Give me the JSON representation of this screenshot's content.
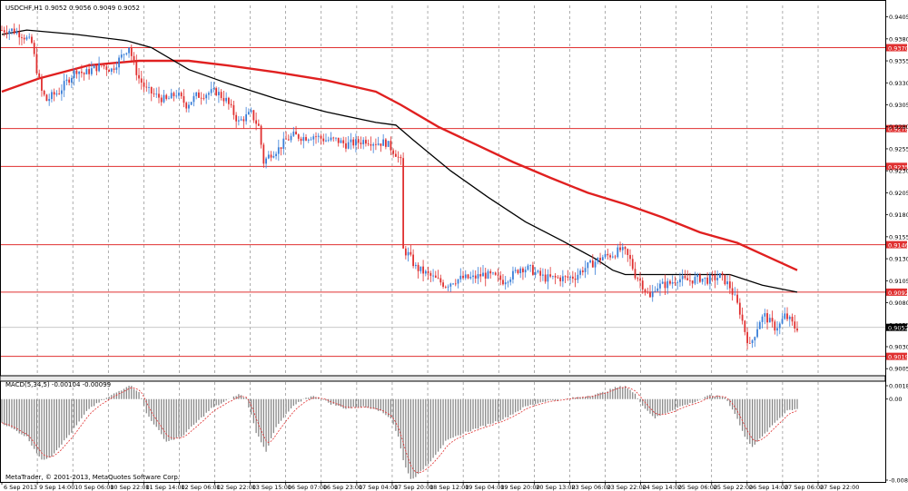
{
  "symbol_header": "USDCHF,H1  0.9052 0.9056 0.9049 0.9052",
  "macd_header": "MACD(5,34,5) -0.00104 -0.00099",
  "copyright": "MetaTrader, © 2001-2013, MetaQuotes Software Corp.",
  "colors": {
    "bull_candle": "#3a7fd8",
    "bear_candle": "#e03030",
    "level_line": "#e03030",
    "ma_red": "#e02020",
    "ma_black": "#000000",
    "macd_hist": "#808080",
    "macd_signal": "#e03030",
    "grid": "#777777",
    "price_badge": "#e03030",
    "current_badge": "#000000"
  },
  "chart_data": {
    "type": "line",
    "y_axis_ticks": [
      "0.9405",
      "0.9380",
      "0.9355",
      "0.9330",
      "0.9305",
      "0.9280",
      "0.9255",
      "0.9230",
      "0.9205",
      "0.9180",
      "0.9155",
      "0.9130",
      "0.9105",
      "0.9080",
      "0.9055",
      "0.9030",
      "0.9005"
    ],
    "x_axis_ticks": [
      "6 Sep 2013",
      "9 Sep 14:00",
      "10 Sep 06:00",
      "10 Sep 22:00",
      "11 Sep 14:00",
      "12 Sep 06:00",
      "12 Sep 22:00",
      "13 Sep 15:00",
      "16 Sep 07:00",
      "16 Sep 23:00",
      "17 Sep 04:00",
      "17 Sep 20:00",
      "18 Sep 12:00",
      "19 Sep 04:00",
      "19 Sep 20:00",
      "20 Sep 13:00",
      "23 Sep 06:00",
      "23 Sep 22:00",
      "24 Sep 14:00",
      "25 Sep 06:00",
      "25 Sep 22:00",
      "26 Sep 14:00",
      "27 Sep 06:00",
      "27 Sep 22:00"
    ],
    "ylim": [
      0.8998,
      0.9418
    ],
    "levels": [
      {
        "label": "0.9370",
        "value": 0.937
      },
      {
        "label": "0.9278",
        "value": 0.9278
      },
      {
        "label": "0.9235",
        "value": 0.9235
      },
      {
        "label": "0.9146",
        "value": 0.9146
      },
      {
        "label": "0.9092",
        "value": 0.9092
      },
      {
        "label": "0.9019",
        "value": 0.9019
      }
    ],
    "current_price": {
      "label": "0.9052",
      "value": 0.9052
    },
    "close_path": [
      [
        0,
        0.939
      ],
      [
        4,
        0.939
      ],
      [
        8,
        0.9385
      ],
      [
        12,
        0.9375
      ],
      [
        14,
        0.9345
      ],
      [
        16,
        0.932
      ],
      [
        18,
        0.931
      ],
      [
        20,
        0.9315
      ],
      [
        23,
        0.932
      ],
      [
        27,
        0.9335
      ],
      [
        30,
        0.9345
      ],
      [
        33,
        0.934
      ],
      [
        36,
        0.9345
      ],
      [
        40,
        0.935
      ],
      [
        44,
        0.9345
      ],
      [
        48,
        0.936
      ],
      [
        51,
        0.9372
      ],
      [
        53,
        0.935
      ],
      [
        55,
        0.9335
      ],
      [
        58,
        0.9322
      ],
      [
        62,
        0.9315
      ],
      [
        66,
        0.931
      ],
      [
        70,
        0.9318
      ],
      [
        74,
        0.9305
      ],
      [
        78,
        0.9315
      ],
      [
        82,
        0.9318
      ],
      [
        86,
        0.932
      ],
      [
        90,
        0.931
      ],
      [
        92,
        0.93
      ],
      [
        95,
        0.9285
      ],
      [
        97,
        0.929
      ],
      [
        100,
        0.9295
      ],
      [
        103,
        0.928
      ],
      [
        105,
        0.924
      ],
      [
        108,
        0.925
      ],
      [
        111,
        0.9255
      ],
      [
        114,
        0.9265
      ],
      [
        117,
        0.927
      ],
      [
        121,
        0.9268
      ],
      [
        125,
        0.927
      ],
      [
        130,
        0.9265
      ],
      [
        134,
        0.9265
      ],
      [
        138,
        0.926
      ],
      [
        142,
        0.9262
      ],
      [
        146,
        0.9265
      ],
      [
        150,
        0.9262
      ],
      [
        154,
        0.9262
      ],
      [
        158,
        0.925
      ],
      [
        160,
        0.924
      ],
      [
        161,
        0.914
      ],
      [
        163,
        0.9135
      ],
      [
        166,
        0.912
      ],
      [
        169,
        0.9115
      ],
      [
        172,
        0.911
      ],
      [
        175,
        0.9105
      ],
      [
        178,
        0.91
      ],
      [
        181,
        0.9105
      ],
      [
        185,
        0.9108
      ],
      [
        189,
        0.9108
      ],
      [
        193,
        0.9112
      ],
      [
        197,
        0.911
      ],
      [
        201,
        0.9105
      ],
      [
        205,
        0.9112
      ],
      [
        208,
        0.912
      ],
      [
        212,
        0.9118
      ],
      [
        215,
        0.9112
      ],
      [
        218,
        0.9108
      ],
      [
        222,
        0.9108
      ],
      [
        226,
        0.9108
      ],
      [
        230,
        0.911
      ],
      [
        233,
        0.9118
      ],
      [
        237,
        0.9125
      ],
      [
        241,
        0.9132
      ],
      [
        245,
        0.9135
      ],
      [
        248,
        0.914
      ],
      [
        250,
        0.9137
      ],
      [
        252,
        0.9128
      ],
      [
        254,
        0.9112
      ],
      [
        256,
        0.9105
      ],
      [
        258,
        0.9095
      ],
      [
        260,
        0.9085
      ],
      [
        262,
        0.9098
      ],
      [
        265,
        0.91
      ],
      [
        268,
        0.9102
      ],
      [
        271,
        0.9108
      ],
      [
        274,
        0.9105
      ],
      [
        277,
        0.9106
      ],
      [
        280,
        0.9108
      ],
      [
        283,
        0.9106
      ],
      [
        286,
        0.9108
      ],
      [
        288,
        0.911
      ],
      [
        290,
        0.9105
      ],
      [
        292,
        0.9098
      ],
      [
        294,
        0.9085
      ],
      [
        296,
        0.907
      ],
      [
        298,
        0.9048
      ],
      [
        300,
        0.903
      ],
      [
        302,
        0.9045
      ],
      [
        304,
        0.906
      ],
      [
        306,
        0.9065
      ],
      [
        308,
        0.9058
      ],
      [
        310,
        0.9052
      ],
      [
        312,
        0.9055
      ],
      [
        314,
        0.9065
      ],
      [
        316,
        0.906
      ],
      [
        318,
        0.9052
      ],
      [
        319,
        0.9052
      ]
    ],
    "moving_averages": [
      {
        "color": "ma_red",
        "points": [
          [
            0,
            0.932
          ],
          [
            15,
            0.9335
          ],
          [
            35,
            0.935
          ],
          [
            55,
            0.9355
          ],
          [
            75,
            0.9355
          ],
          [
            90,
            0.935
          ],
          [
            110,
            0.9342
          ],
          [
            130,
            0.9333
          ],
          [
            150,
            0.932
          ],
          [
            160,
            0.9305
          ],
          [
            175,
            0.928
          ],
          [
            190,
            0.926
          ],
          [
            205,
            0.924
          ],
          [
            220,
            0.9222
          ],
          [
            235,
            0.9205
          ],
          [
            250,
            0.9192
          ],
          [
            265,
            0.9177
          ],
          [
            280,
            0.916
          ],
          [
            295,
            0.9148
          ],
          [
            305,
            0.9135
          ],
          [
            319,
            0.9117
          ]
        ]
      },
      {
        "color": "ma_black",
        "points": [
          [
            0,
            0.9385
          ],
          [
            10,
            0.939
          ],
          [
            30,
            0.9385
          ],
          [
            50,
            0.9378
          ],
          [
            60,
            0.937
          ],
          [
            75,
            0.9345
          ],
          [
            90,
            0.933
          ],
          [
            110,
            0.9312
          ],
          [
            130,
            0.9297
          ],
          [
            150,
            0.9285
          ],
          [
            158,
            0.9282
          ],
          [
            165,
            0.9265
          ],
          [
            180,
            0.923
          ],
          [
            195,
            0.92
          ],
          [
            210,
            0.9172
          ],
          [
            225,
            0.915
          ],
          [
            238,
            0.913
          ],
          [
            245,
            0.9117
          ],
          [
            250,
            0.9112
          ],
          [
            265,
            0.9112
          ],
          [
            280,
            0.9112
          ],
          [
            292,
            0.9112
          ],
          [
            305,
            0.91
          ],
          [
            319,
            0.9092
          ]
        ]
      }
    ],
    "macd_ylim": [
      -0.00877,
      0.0018
    ],
    "macd_ticks": [
      "0.0018",
      "0.00",
      "-0.00877"
    ],
    "macd_path": [
      [
        0,
        -0.0025
      ],
      [
        10,
        -0.004
      ],
      [
        16,
        -0.0065
      ],
      [
        20,
        -0.006
      ],
      [
        28,
        -0.0035
      ],
      [
        35,
        -0.001
      ],
      [
        42,
        0.0001
      ],
      [
        48,
        0.001
      ],
      [
        51,
        0.0015
      ],
      [
        55,
        0.0008
      ],
      [
        58,
        -0.0015
      ],
      [
        62,
        -0.003
      ],
      [
        66,
        -0.0045
      ],
      [
        72,
        -0.004
      ],
      [
        78,
        -0.0025
      ],
      [
        84,
        -0.001
      ],
      [
        90,
        -0.0002
      ],
      [
        95,
        0.0005
      ],
      [
        98,
        0.0001
      ],
      [
        102,
        -0.0035
      ],
      [
        106,
        -0.0055
      ],
      [
        110,
        -0.003
      ],
      [
        116,
        -0.001
      ],
      [
        122,
        0.0002
      ],
      [
        126,
        0.0003
      ],
      [
        132,
        -0.0005
      ],
      [
        138,
        -0.001
      ],
      [
        144,
        -0.0008
      ],
      [
        150,
        -0.001
      ],
      [
        156,
        -0.002
      ],
      [
        159,
        -0.004
      ],
      [
        161,
        -0.0065
      ],
      [
        164,
        -0.0085
      ],
      [
        167,
        -0.008
      ],
      [
        172,
        -0.0065
      ],
      [
        178,
        -0.0045
      ],
      [
        186,
        -0.0035
      ],
      [
        194,
        -0.0028
      ],
      [
        202,
        -0.002
      ],
      [
        210,
        -0.0008
      ],
      [
        218,
        -0.0002
      ],
      [
        226,
        0.0
      ],
      [
        234,
        0.0003
      ],
      [
        240,
        0.0006
      ],
      [
        246,
        0.0012
      ],
      [
        250,
        0.0014
      ],
      [
        254,
        0.0005
      ],
      [
        258,
        -0.001
      ],
      [
        262,
        -0.002
      ],
      [
        266,
        -0.0015
      ],
      [
        272,
        -0.0008
      ],
      [
        278,
        -0.0003
      ],
      [
        284,
        0.0004
      ],
      [
        290,
        0.0002
      ],
      [
        294,
        -0.0015
      ],
      [
        298,
        -0.004
      ],
      [
        301,
        -0.005
      ],
      [
        305,
        -0.004
      ],
      [
        310,
        -0.0025
      ],
      [
        315,
        -0.0012
      ],
      [
        319,
        -0.001
      ]
    ]
  }
}
